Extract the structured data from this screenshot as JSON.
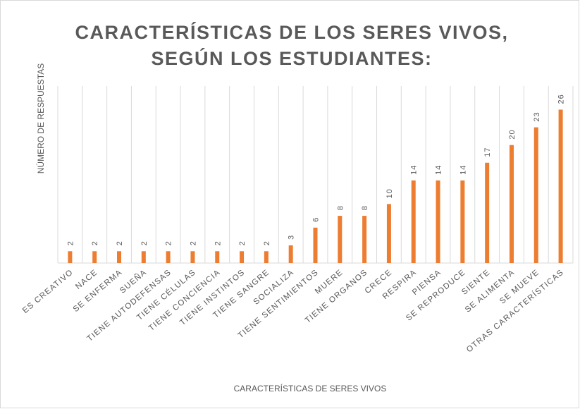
{
  "chart_data": {
    "type": "bar",
    "title": [
      "CARACTERÍSTICAS DE LOS SERES VIVOS,",
      "SEGÚN LOS ESTUDIANTES:"
    ],
    "x_label": "CARACTERÍSTICAS DE SERES VIVOS",
    "y_label": "NÚMERO DE RESPUESTAS",
    "categories": [
      "ES CREATIVO",
      "NACE",
      "SE ENFERMA",
      "SUEÑA",
      "TIENE AUTODEFENSAS",
      "TIENE CÉLULAS",
      "TIENE CONCIENCIA",
      "TIENE INSTINTOS",
      "TIENE SANGRE",
      "SOCIALIZA",
      "TIENE SENTIMIENTOS",
      "MUERE",
      "TIENE ORGANOS",
      "CRECE",
      "RESPIRA",
      "PIENSA",
      "SE REPRODUCE",
      "SIENTE",
      "SE ALIMENTA",
      "SE MUEVE",
      "OTRAS CARACTERÍSTICAS"
    ],
    "values": [
      2,
      2,
      2,
      2,
      2,
      2,
      2,
      2,
      2,
      3,
      6,
      8,
      8,
      10,
      14,
      14,
      14,
      17,
      20,
      23,
      26
    ],
    "color": "#ed7d31",
    "ylim": [
      0,
      30
    ]
  }
}
